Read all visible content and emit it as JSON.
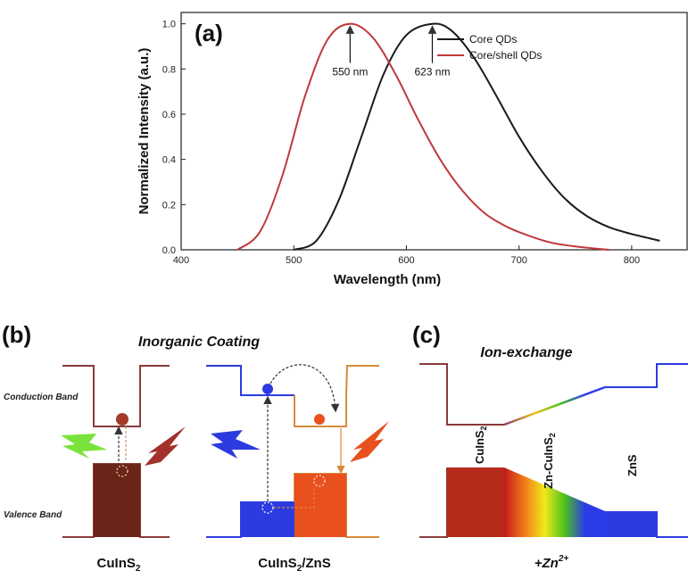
{
  "panel_a": {
    "label": "(a)",
    "chart_data": {
      "type": "line",
      "title": "",
      "xlabel": "Wavelength (nm)",
      "ylabel": "Normalized Intensity (a.u.)",
      "xlim": [
        400,
        850
      ],
      "ylim": [
        0,
        1.05
      ],
      "xticks": [
        "400",
        "500",
        "600",
        "700",
        "800"
      ],
      "yticks": [
        "0.0",
        "0.2",
        "0.4",
        "0.6",
        "0.8",
        "1.0"
      ],
      "legend_position": "top-right",
      "series": [
        {
          "name": "Core QDs",
          "color": "#1a1a1a",
          "x": [
            500,
            520,
            540,
            560,
            580,
            600,
            623,
            640,
            660,
            680,
            700,
            720,
            740,
            760,
            780,
            800,
            825
          ],
          "y": [
            0.0,
            0.04,
            0.22,
            0.5,
            0.78,
            0.95,
            1.0,
            0.97,
            0.85,
            0.68,
            0.5,
            0.35,
            0.23,
            0.15,
            0.1,
            0.07,
            0.04
          ]
        },
        {
          "name": "Core/shell QDs",
          "color": "#c0393b",
          "x": [
            450,
            470,
            490,
            510,
            530,
            550,
            570,
            590,
            610,
            630,
            650,
            670,
            690,
            710,
            730,
            750,
            780
          ],
          "y": [
            0.0,
            0.08,
            0.33,
            0.68,
            0.93,
            1.0,
            0.94,
            0.78,
            0.58,
            0.4,
            0.26,
            0.16,
            0.1,
            0.06,
            0.03,
            0.015,
            0.0
          ]
        }
      ],
      "annotations": [
        {
          "text": "550 nm",
          "x": 550,
          "y": 1.0
        },
        {
          "text": "623 nm",
          "x": 623,
          "y": 1.0
        }
      ]
    }
  },
  "panel_b": {
    "label": "(b)",
    "title": "Inorganic Coating",
    "conduction_band_label": "Conduction Band",
    "valence_band_label": "Valence Band",
    "left_caption": {
      "main": "CuInS",
      "sub": "2",
      "rest": ""
    },
    "right_caption": {
      "main": "CuInS",
      "sub": "2",
      "rest": "/ZnS"
    }
  },
  "panel_c": {
    "label": "(c)",
    "title": "Ion-exchange",
    "region_labels": [
      {
        "main": "CuInS",
        "sub": "2"
      },
      {
        "main": "Zn-CuInS",
        "sub": "2"
      },
      {
        "main": "ZnS",
        "sub": ""
      }
    ],
    "caption": {
      "main": "+Zn",
      "sup": "2+"
    }
  },
  "colors": {
    "maroon": "#8b3a3a",
    "dark_brown": "#6b2418",
    "blue": "#2b3be0",
    "orange": "#e8501e",
    "orange_line": "#d88a3a",
    "dot_red": "#c0392b"
  }
}
